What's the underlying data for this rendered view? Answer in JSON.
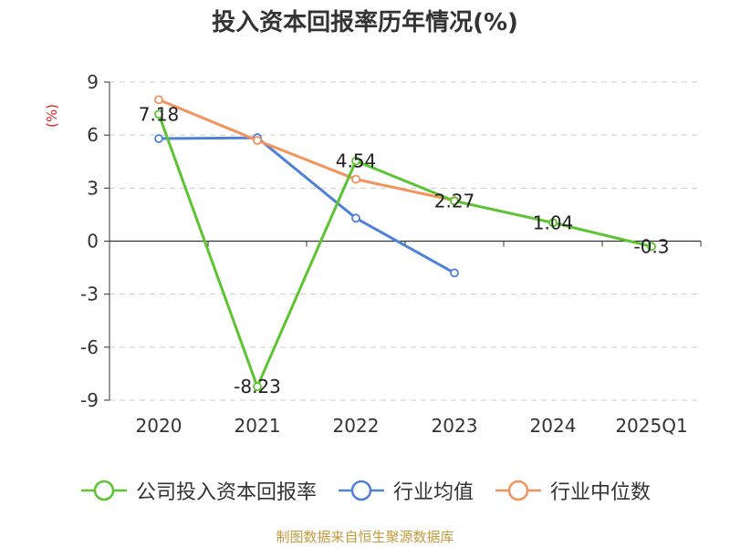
{
  "title": "投入资本回报率历年情况(%)",
  "source": "制图数据来自恒生聚源数据库",
  "chart_data": {
    "type": "line",
    "title": "投入资本回报率历年情况(%)",
    "ylabel": "(%)",
    "ylim": [
      -9,
      9
    ],
    "yticks": [
      "9",
      "6",
      "3",
      "0",
      "-3",
      "-6",
      "-9"
    ],
    "ytick_values": [
      9,
      6,
      3,
      0,
      -3,
      -6,
      -9
    ],
    "categories": [
      "2020",
      "2021",
      "2022",
      "2023",
      "2024",
      "2025Q1"
    ],
    "grid": true,
    "legend_position": "bottom",
    "series": [
      {
        "name": "公司投入资本回报率",
        "color": "#5cc430",
        "values": [
          7.18,
          -8.23,
          4.54,
          2.27,
          1.04,
          -0.3
        ],
        "labels": [
          "7.18",
          "-8.23",
          "4.54",
          "2.27",
          "1.04",
          "-0.3"
        ]
      },
      {
        "name": "行业均值",
        "color": "#4f81d9",
        "values": [
          5.8,
          5.85,
          1.3,
          -1.8,
          null,
          null
        ]
      },
      {
        "name": "行业中位数",
        "color": "#f4935c",
        "values": [
          8.0,
          5.7,
          3.5,
          2.3,
          null,
          null
        ]
      }
    ]
  }
}
